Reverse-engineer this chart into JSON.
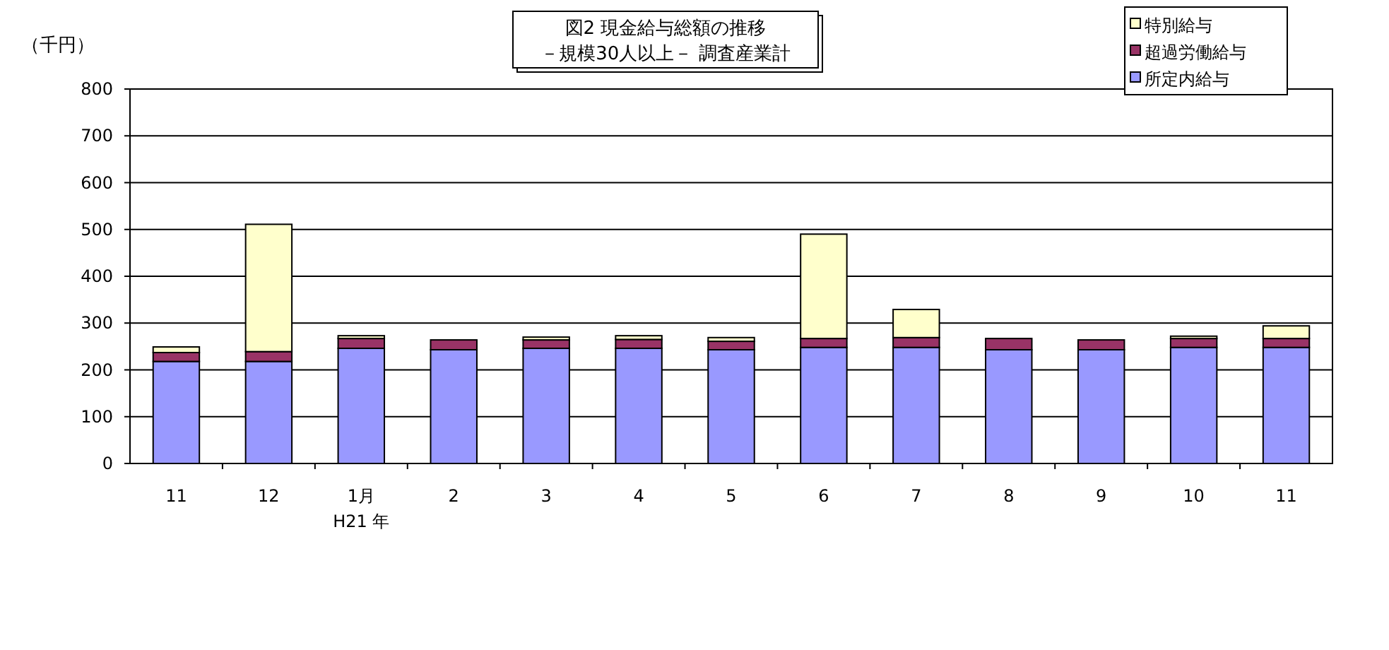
{
  "chart_data": {
    "type": "bar",
    "stacked": true,
    "title": "図2 現金給与総額の推移",
    "subtitle": "－規模30人以上－ 調査産業計",
    "ylabel": "（千円）",
    "categories": [
      "11",
      "12",
      "1月\nH21 年",
      "2",
      "3",
      "4",
      "5",
      "6",
      "7",
      "8",
      "9",
      "10",
      "11"
    ],
    "series": [
      {
        "name": "所定内給与",
        "color": "#9999ff",
        "values": [
          218,
          218,
          246,
          243,
          246,
          246,
          243,
          248,
          248,
          243,
          243,
          248,
          248
        ]
      },
      {
        "name": "超過労働給与",
        "color": "#993366",
        "values": [
          19,
          21,
          21,
          21,
          18,
          19,
          18,
          19,
          21,
          24,
          21,
          19,
          19
        ]
      },
      {
        "name": "特別給与",
        "color": "#ffffcc",
        "values": [
          12,
          272,
          6,
          0,
          6,
          8,
          8,
          223,
          60,
          0,
          0,
          5,
          27
        ]
      }
    ],
    "ylim": [
      0,
      800
    ],
    "yticks": [
      0,
      100,
      200,
      300,
      400,
      500,
      600,
      700,
      800
    ],
    "grid": "y",
    "legend": "top right"
  }
}
